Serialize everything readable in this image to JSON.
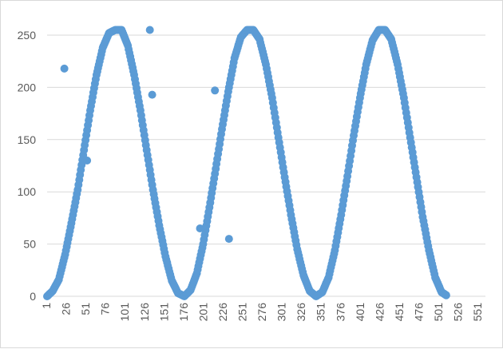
{
  "chart_data": {
    "type": "scatter",
    "title": "",
    "xlabel": "",
    "ylabel": "",
    "x_range": [
      1,
      560
    ],
    "ylim": [
      0,
      250
    ],
    "y_ticks": [
      0,
      50,
      100,
      150,
      200,
      250
    ],
    "x_tick_labels": [
      "1",
      "26",
      "51",
      "76",
      "101",
      "126",
      "151",
      "176",
      "201",
      "226",
      "251",
      "276",
      "301",
      "326",
      "351",
      "376",
      "401",
      "426",
      "451",
      "476",
      "501",
      "526",
      "551"
    ],
    "grid": "horizontal",
    "legend": "none",
    "marker_color": "#5b9bd5",
    "gridline_color": "#d9d9d9",
    "series": [
      {
        "points": [
          [
            1,
            0
          ],
          [
            8,
            5
          ],
          [
            16,
            16
          ],
          [
            24,
            40
          ],
          [
            32,
            70
          ],
          [
            40,
            102
          ],
          [
            48,
            140
          ],
          [
            56,
            178
          ],
          [
            64,
            212
          ],
          [
            72,
            238
          ],
          [
            80,
            252
          ],
          [
            88,
            255
          ],
          [
            96,
            255
          ],
          [
            104,
            240
          ],
          [
            112,
            212
          ],
          [
            120,
            178
          ],
          [
            128,
            140
          ],
          [
            136,
            102
          ],
          [
            144,
            68
          ],
          [
            152,
            38
          ],
          [
            160,
            15
          ],
          [
            168,
            3
          ],
          [
            176,
            0
          ],
          [
            184,
            6
          ],
          [
            192,
            22
          ],
          [
            200,
            50
          ],
          [
            208,
            85
          ],
          [
            216,
            122
          ],
          [
            224,
            160
          ],
          [
            232,
            196
          ],
          [
            240,
            228
          ],
          [
            248,
            248
          ],
          [
            256,
            255
          ],
          [
            264,
            255
          ],
          [
            272,
            246
          ],
          [
            280,
            222
          ],
          [
            288,
            190
          ],
          [
            296,
            152
          ],
          [
            304,
            114
          ],
          [
            312,
            78
          ],
          [
            320,
            45
          ],
          [
            328,
            20
          ],
          [
            336,
            5
          ],
          [
            344,
            0
          ],
          [
            352,
            4
          ],
          [
            360,
            18
          ],
          [
            368,
            44
          ],
          [
            376,
            78
          ],
          [
            384,
            115
          ],
          [
            392,
            154
          ],
          [
            400,
            190
          ],
          [
            408,
            222
          ],
          [
            416,
            245
          ],
          [
            424,
            255
          ],
          [
            432,
            255
          ],
          [
            440,
            246
          ],
          [
            448,
            222
          ],
          [
            456,
            190
          ],
          [
            464,
            152
          ],
          [
            472,
            114
          ],
          [
            480,
            76
          ],
          [
            488,
            44
          ],
          [
            496,
            18
          ],
          [
            504,
            4
          ],
          [
            510,
            1
          ],
          [
            23,
            218
          ],
          [
            52,
            130
          ],
          [
            132,
            255
          ],
          [
            135,
            193
          ],
          [
            196,
            65
          ],
          [
            215,
            197
          ],
          [
            233,
            55
          ]
        ]
      }
    ]
  }
}
